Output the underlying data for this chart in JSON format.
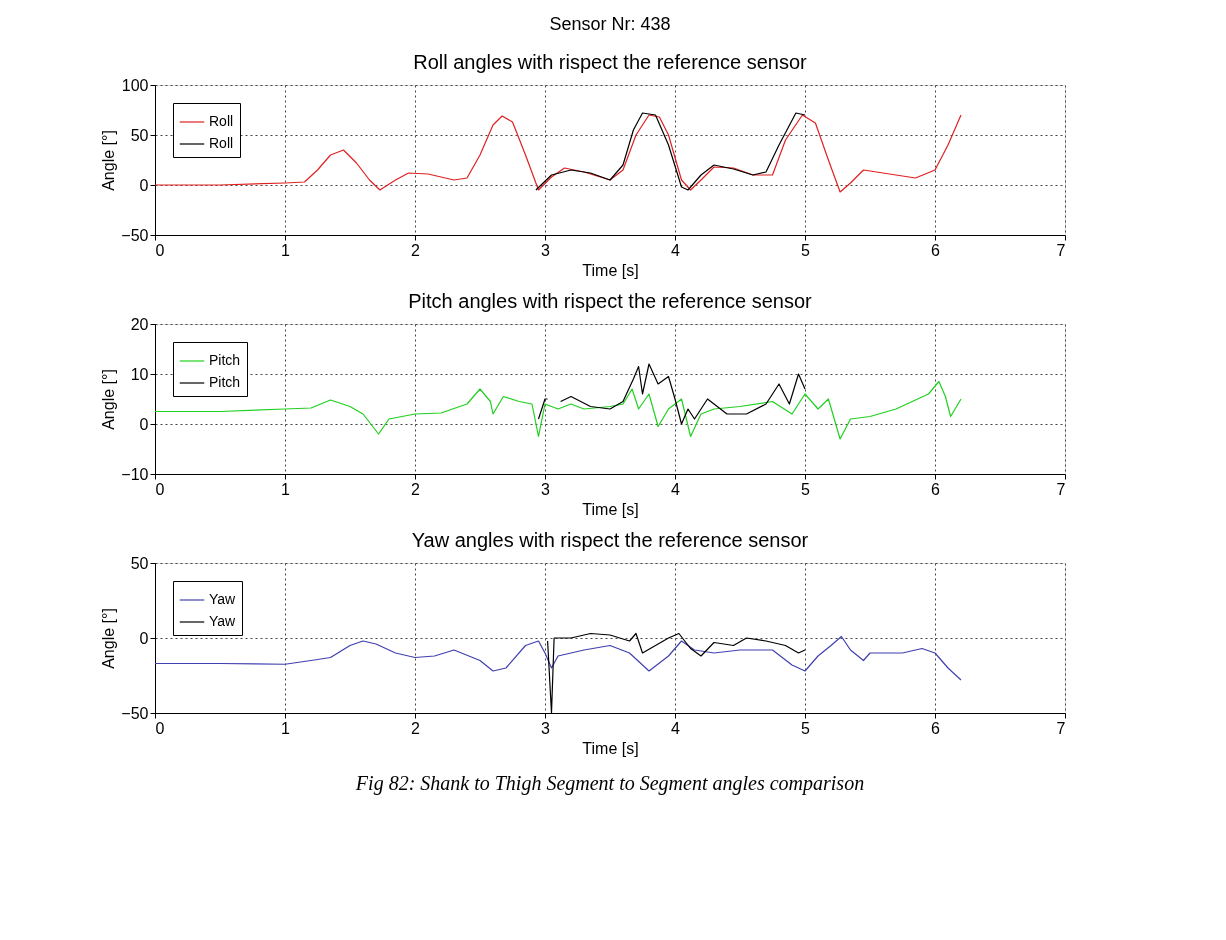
{
  "chart_data": [
    {
      "type": "line",
      "title": "Roll angles with rispect the reference sensor",
      "xlabel": "Time [s]",
      "ylabel": "Angle [°]",
      "annotations": [
        "Sensor Nr: 438"
      ],
      "xlim": [
        0,
        7
      ],
      "xticks": [
        0,
        1,
        2,
        3,
        4,
        5,
        6,
        7
      ],
      "ylim": [
        -50,
        100
      ],
      "yticks": [
        -50,
        0,
        50,
        100
      ],
      "grid": true,
      "legend": "top left",
      "series": [
        {
          "name": "Roll",
          "color": "#e02020",
          "x": [
            0,
            0.5,
            1,
            1.15,
            1.25,
            1.35,
            1.45,
            1.55,
            1.65,
            1.73,
            1.85,
            1.95,
            2.1,
            2.3,
            2.4,
            2.5,
            2.6,
            2.67,
            2.75,
            2.85,
            2.95,
            3.05,
            3.15,
            3.3,
            3.5,
            3.6,
            3.7,
            3.8,
            3.88,
            3.95,
            4.05,
            4.12,
            4.2,
            4.3,
            4.45,
            4.6,
            4.75,
            4.85,
            4.98,
            5.08,
            5.18,
            5.27,
            5.35,
            5.45,
            5.6,
            5.85,
            6.0,
            6.1,
            6.2
          ],
          "values": [
            0,
            0,
            2,
            3,
            15,
            30,
            35,
            22,
            5,
            -5,
            5,
            12,
            11,
            5,
            7,
            30,
            60,
            69,
            63,
            30,
            -5,
            8,
            17,
            13,
            5,
            15,
            50,
            70,
            68,
            50,
            5,
            -5,
            5,
            18,
            17,
            10,
            10,
            45,
            70,
            62,
            25,
            -7,
            2,
            15,
            12,
            7,
            15,
            40,
            70
          ]
        },
        {
          "name": "Roll",
          "color": "#000000",
          "x": [
            2.93,
            3.05,
            3.2,
            3.35,
            3.5,
            3.6,
            3.68,
            3.75,
            3.85,
            3.95,
            4.05,
            4.1,
            4.2,
            4.3,
            4.45,
            4.6,
            4.7,
            4.8,
            4.93,
            5.0
          ],
          "values": [
            -5,
            10,
            15,
            12,
            5,
            20,
            55,
            72,
            70,
            40,
            -2,
            -5,
            10,
            20,
            16,
            10,
            13,
            40,
            72,
            70
          ]
        }
      ]
    },
    {
      "type": "line",
      "title": "Pitch angles with rispect the reference sensor",
      "xlabel": "Time [s]",
      "ylabel": "Angle [°]",
      "xlim": [
        0,
        7
      ],
      "xticks": [
        0,
        1,
        2,
        3,
        4,
        5,
        6,
        7
      ],
      "ylim": [
        -10,
        20
      ],
      "yticks": [
        -10,
        0,
        10,
        20
      ],
      "grid": true,
      "legend": "top left",
      "series": [
        {
          "name": "Pitch",
          "color": "#20d020",
          "x": [
            0,
            0.5,
            1,
            1.2,
            1.35,
            1.5,
            1.6,
            1.72,
            1.8,
            2,
            2.2,
            2.4,
            2.5,
            2.58,
            2.6,
            2.68,
            2.8,
            2.9,
            2.95,
            3.0,
            3.1,
            3.2,
            3.3,
            3.5,
            3.6,
            3.67,
            3.72,
            3.8,
            3.87,
            3.95,
            4.05,
            4.12,
            4.2,
            4.3,
            4.5,
            4.75,
            4.9,
            5.0,
            5.1,
            5.18,
            5.27,
            5.35,
            5.5,
            5.7,
            5.95,
            6.03,
            6.08,
            6.12,
            6.2
          ],
          "values": [
            2.5,
            2.5,
            3,
            3.2,
            4.8,
            3.5,
            2,
            -2,
            1,
            2,
            2.2,
            4,
            7,
            4.5,
            2,
            5.5,
            4.5,
            4,
            -2.5,
            4,
            3,
            4,
            3,
            3.5,
            4,
            7,
            3,
            6,
            -0.5,
            3,
            5,
            -2.5,
            2,
            3,
            3.5,
            4.5,
            2,
            6,
            3,
            5,
            -3,
            1,
            1.5,
            3,
            6,
            8.5,
            5.5,
            1.5,
            5
          ]
        },
        {
          "name": "Pitch",
          "color": "#000000",
          "x": [
            2.95,
            3.0,
            3.02,
            3.06,
            3.12,
            3.2,
            3.35,
            3.5,
            3.6,
            3.68,
            3.72,
            3.75,
            3.8,
            3.87,
            3.95,
            4.0,
            4.05,
            4.1,
            4.15,
            4.25,
            4.3,
            4.4,
            4.55,
            4.7,
            4.8,
            4.88,
            4.95,
            5.0
          ],
          "values": [
            1,
            5,
            5,
            null,
            4.5,
            5.5,
            3.5,
            3,
            4.5,
            9,
            11.5,
            6,
            12,
            8,
            9.5,
            5,
            0,
            3,
            1,
            5,
            4,
            2,
            2,
            4,
            8,
            4,
            10,
            7
          ]
        }
      ]
    },
    {
      "type": "line",
      "title": "Yaw angles with rispect the reference sensor",
      "xlabel": "Time [s]",
      "ylabel": "Angle [°]",
      "annotations": [
        "Fig 82: Shank to Thigh Segment to Segment angles comparison"
      ],
      "xlim": [
        0,
        7
      ],
      "xticks": [
        0,
        1,
        2,
        3,
        4,
        5,
        6,
        7
      ],
      "ylim": [
        -50,
        50
      ],
      "yticks": [
        -50,
        0,
        50
      ],
      "grid": true,
      "legend": "top left",
      "series": [
        {
          "name": "Yaw",
          "color": "#4040b0",
          "x": [
            0,
            0.5,
            1,
            1.2,
            1.35,
            1.5,
            1.6,
            1.7,
            1.85,
            2.0,
            2.15,
            2.3,
            2.5,
            2.6,
            2.7,
            2.85,
            2.95,
            3.0,
            3.05,
            3.1,
            3.3,
            3.5,
            3.65,
            3.8,
            3.95,
            4.05,
            4.15,
            4.3,
            4.5,
            4.75,
            4.9,
            5.0,
            5.1,
            5.2,
            5.28,
            5.35,
            5.45,
            5.5,
            5.75,
            5.9,
            6.0,
            6.1,
            6.2
          ],
          "values": [
            -17,
            -17,
            -17.5,
            -15,
            -13,
            -5,
            -2,
            -4,
            -10,
            -13,
            -12,
            -8,
            -15,
            -22,
            -20,
            -5,
            -2,
            -10,
            -20,
            -12,
            -8,
            -5,
            -10,
            -22,
            -12,
            -2,
            -8,
            -10,
            -8,
            -8,
            -18,
            -22,
            -12,
            -5,
            1,
            -8,
            -15,
            -10,
            -10,
            -7,
            -10,
            -20,
            -28
          ]
        },
        {
          "name": "Yaw",
          "color": "#000000",
          "x": [
            3.02,
            3.05,
            3.07,
            3.2,
            3.35,
            3.5,
            3.65,
            3.7,
            3.75,
            3.85,
            3.95,
            4.03,
            4.12,
            4.2,
            4.3,
            4.45,
            4.55,
            4.7,
            4.85,
            4.95,
            5.0
          ],
          "values": [
            -2,
            -50,
            0,
            0,
            3,
            2,
            -2,
            3,
            -10,
            -5,
            0,
            3,
            -7,
            -12,
            -3,
            -5,
            0,
            -2,
            -5,
            -10,
            -8
          ]
        }
      ]
    }
  ]
}
